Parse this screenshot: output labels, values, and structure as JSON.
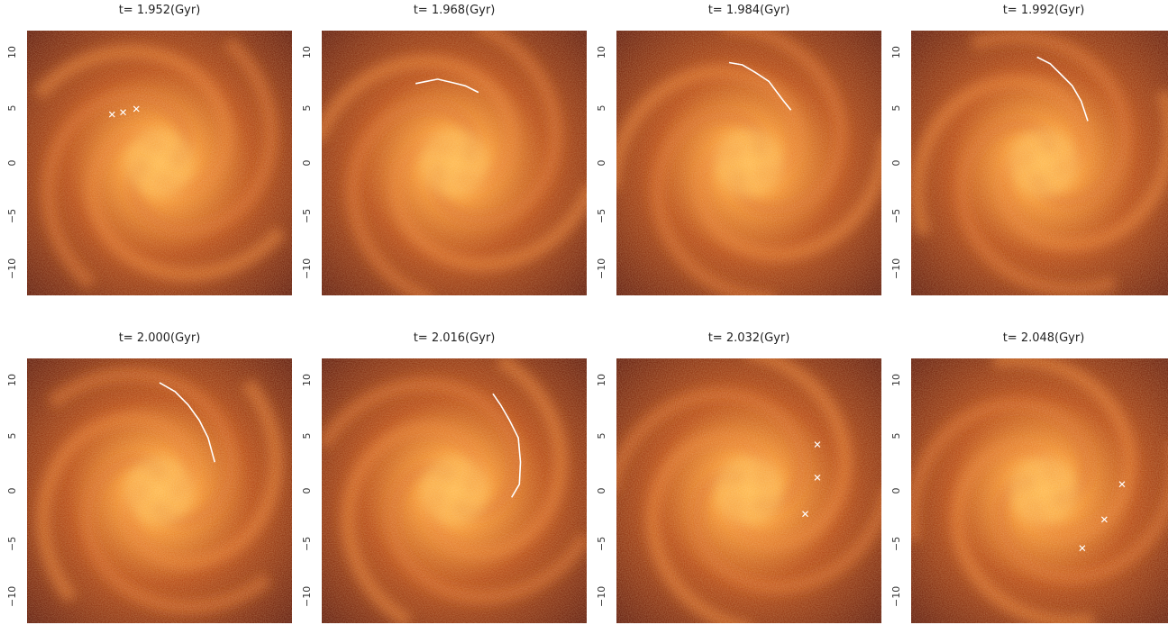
{
  "panels": [
    {
      "title": "t= 1.952(Gyr)",
      "arm": null,
      "crosses": [
        [
          -4.3,
          4.4
        ],
        [
          -3.3,
          4.6
        ],
        [
          -2.1,
          4.9
        ]
      ]
    },
    {
      "title": "t= 1.968(Gyr)",
      "arm": [
        [
          -3.5,
          7.2
        ],
        [
          -2.5,
          7.4
        ],
        [
          -1.5,
          7.6
        ],
        [
          -0.2,
          7.3
        ],
        [
          1.0,
          7.0
        ],
        [
          2.2,
          6.4
        ]
      ],
      "crosses": []
    },
    {
      "title": "t= 1.984(Gyr)",
      "arm": [
        [
          -1.8,
          9.1
        ],
        [
          -0.6,
          8.9
        ],
        [
          0.6,
          8.2
        ],
        [
          1.8,
          7.4
        ],
        [
          3.0,
          5.8
        ],
        [
          3.8,
          4.8
        ]
      ],
      "crosses": []
    },
    {
      "title": "t= 1.992(Gyr)",
      "arm": [
        [
          -0.6,
          9.6
        ],
        [
          0.6,
          9.0
        ],
        [
          1.6,
          8.0
        ],
        [
          2.6,
          7.0
        ],
        [
          3.4,
          5.6
        ],
        [
          4.0,
          3.8
        ]
      ],
      "crosses": []
    },
    {
      "title": "t= 2.000(Gyr)",
      "arm": [
        [
          0.0,
          9.8
        ],
        [
          1.4,
          9.0
        ],
        [
          2.6,
          7.8
        ],
        [
          3.6,
          6.4
        ],
        [
          4.4,
          4.8
        ],
        [
          5.0,
          2.6
        ]
      ],
      "crosses": []
    },
    {
      "title": "t= 2.016(Gyr)",
      "arm": [
        [
          3.5,
          8.8
        ],
        [
          4.2,
          7.8
        ],
        [
          5.0,
          6.4
        ],
        [
          5.8,
          4.8
        ],
        [
          6.0,
          2.6
        ],
        [
          5.9,
          0.6
        ],
        [
          5.2,
          -0.6
        ]
      ],
      "crosses": []
    },
    {
      "title": "t= 2.032(Gyr)",
      "arm": null,
      "crosses": [
        [
          6.2,
          4.2
        ],
        [
          6.2,
          1.2
        ],
        [
          5.1,
          -2.1
        ]
      ]
    },
    {
      "title": "t= 2.048(Gyr)",
      "arm": null,
      "crosses": [
        [
          7.1,
          0.6
        ],
        [
          5.5,
          -2.6
        ],
        [
          3.5,
          -5.2
        ]
      ]
    }
  ],
  "yticks": [
    "10",
    "5",
    "0",
    "−5",
    "−10"
  ],
  "colors": {
    "bg_outer": "#5a1004",
    "mid": "#b3410c",
    "core": "#ffb347",
    "mark": "#ffffff"
  }
}
